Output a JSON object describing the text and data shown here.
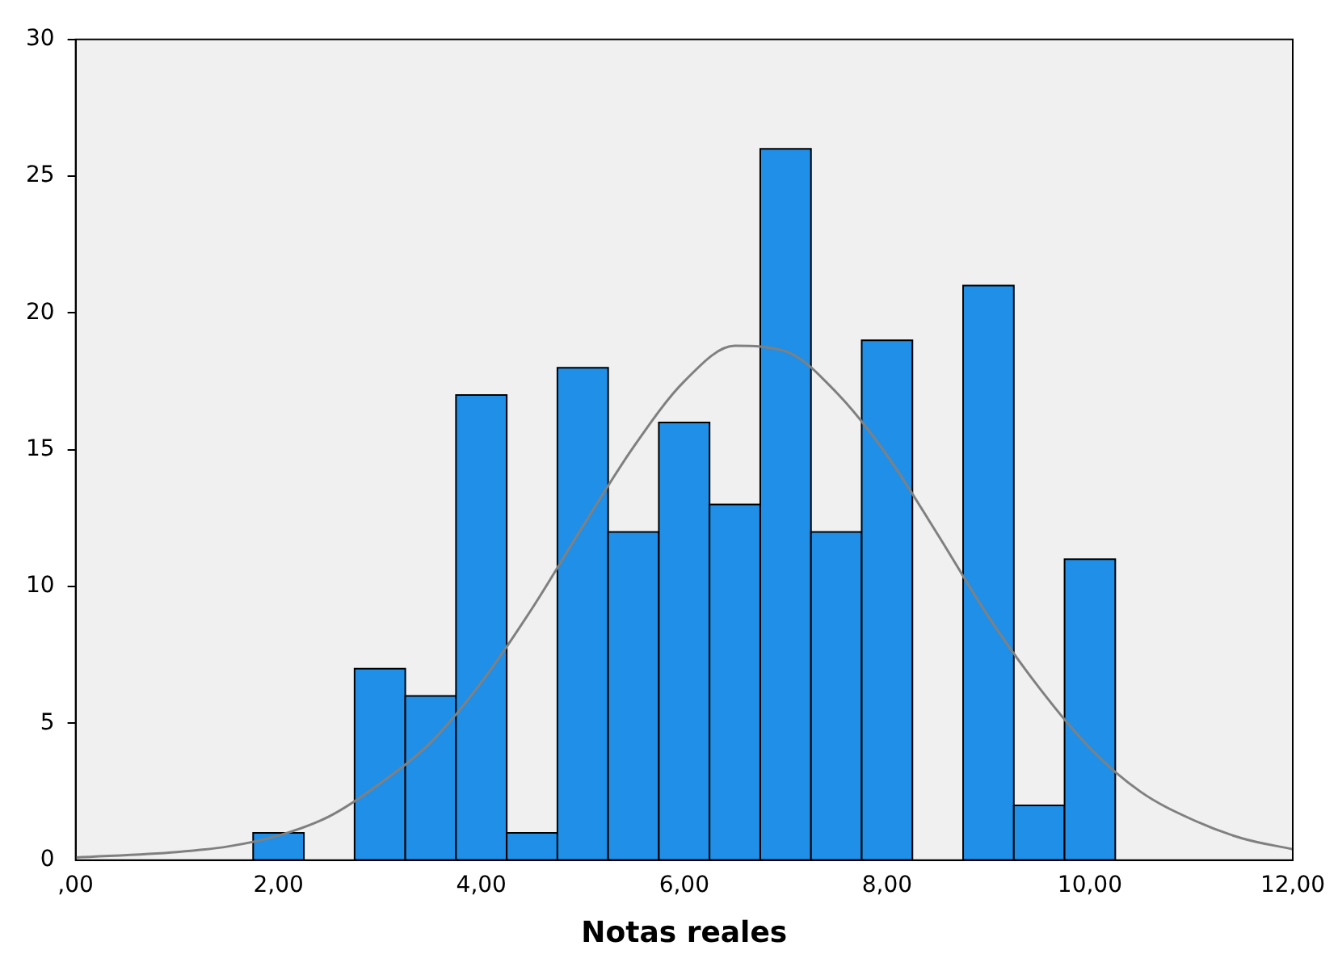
{
  "chart_data": {
    "type": "histogram",
    "xlabel": "Notas reales",
    "bins": [
      1.75,
      2.25,
      2.75,
      3.25,
      3.75,
      4.25,
      4.75,
      5.25,
      5.75,
      6.25,
      6.75,
      7.25,
      7.75,
      8.25,
      8.75,
      9.25,
      9.75,
      10.25
    ],
    "values": [
      1,
      0,
      7,
      6,
      17,
      1,
      18,
      12,
      16,
      13,
      26,
      12,
      19,
      0,
      21,
      2,
      11
    ],
    "color": "#1f8fe8",
    "series": [
      {
        "type": "line",
        "color": "#808080",
        "x": [
          0,
          1,
          1.5,
          2,
          2.5,
          3,
          3.5,
          4,
          4.5,
          5,
          5.5,
          6,
          6.5,
          7,
          7.5,
          8,
          8.5,
          9,
          9.5,
          10,
          10.5,
          11,
          11.5,
          12
        ],
        "values": [
          0.1,
          0.3,
          0.5,
          0.9,
          1.6,
          2.8,
          4.3,
          6.5,
          9.2,
          12.2,
          15.1,
          17.5,
          18.8,
          18.6,
          17.1,
          14.8,
          11.9,
          8.9,
          6.3,
          4.1,
          2.5,
          1.5,
          0.8,
          0.4
        ]
      }
    ],
    "xlim": [
      0,
      12
    ],
    "xticks": [
      {
        "value": 0,
        "label": ",00"
      },
      {
        "value": 2,
        "label": "2,00"
      },
      {
        "value": 4,
        "label": "4,00"
      },
      {
        "value": 6,
        "label": "6,00"
      },
      {
        "value": 8,
        "label": "8,00"
      },
      {
        "value": 10,
        "label": "10,00"
      },
      {
        "value": 12,
        "label": "12,00"
      }
    ],
    "ylim": [
      0,
      30
    ],
    "yticks": [
      0,
      5,
      10,
      15,
      20,
      25,
      30
    ],
    "grid": false,
    "legend": false,
    "marker": "none",
    "line_style": "solid"
  }
}
